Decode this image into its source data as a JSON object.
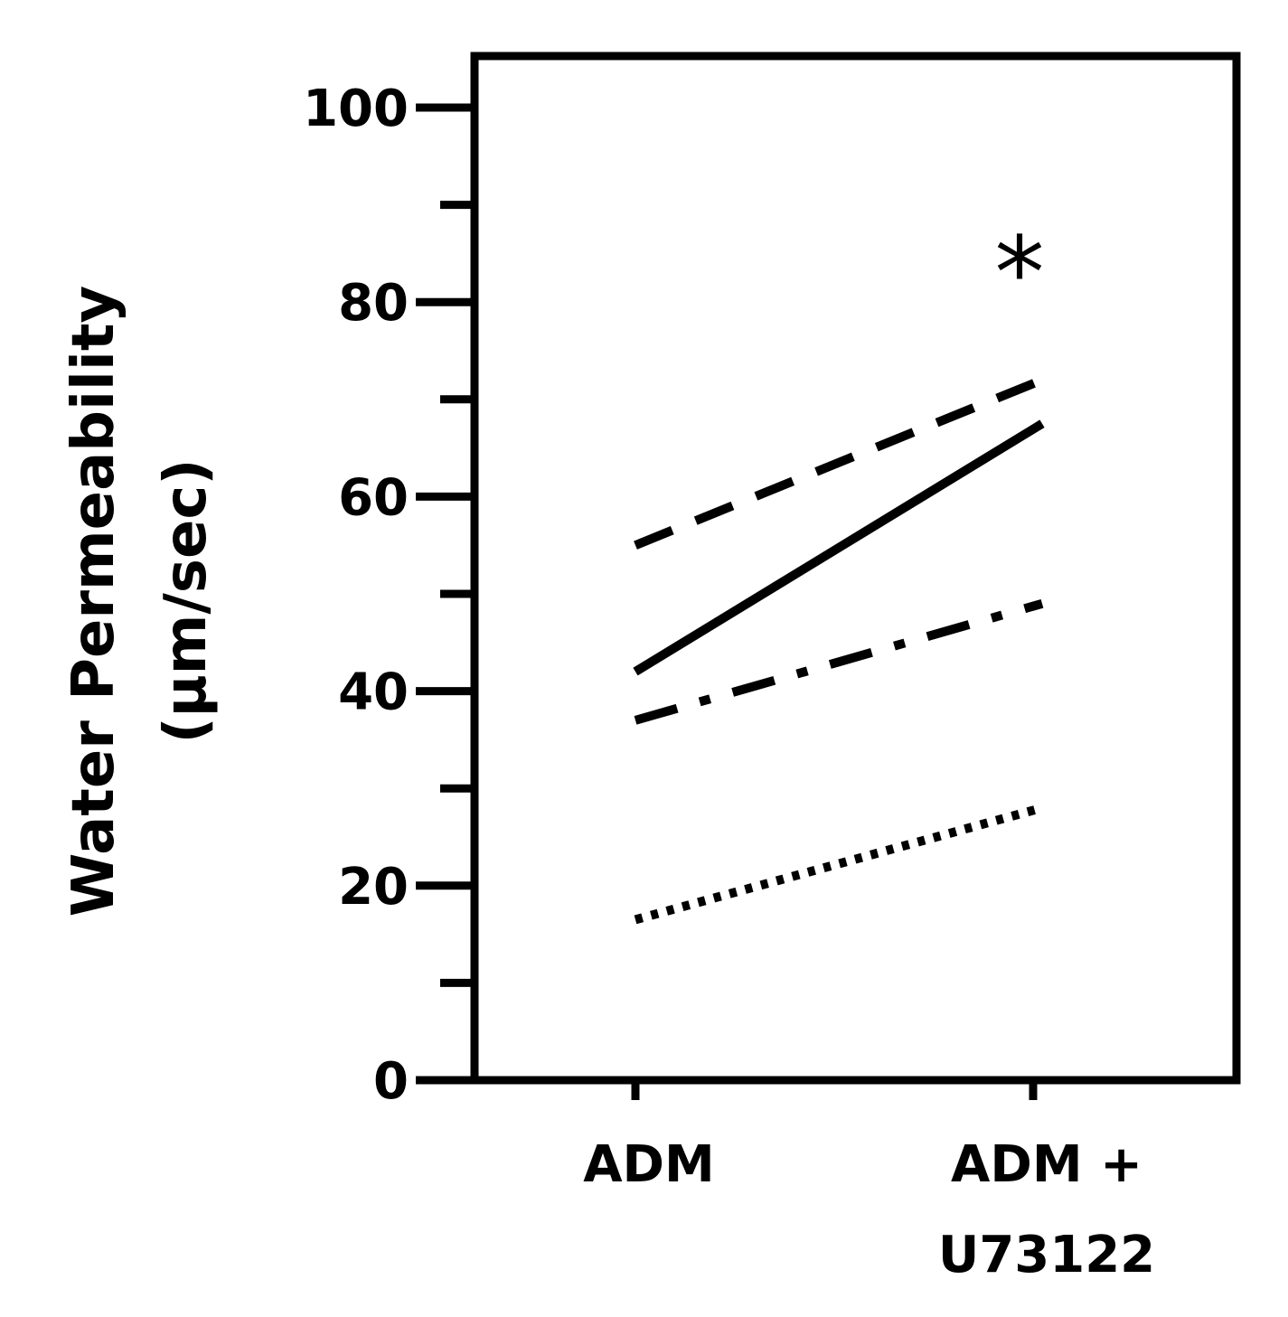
{
  "chart_data": {
    "type": "line",
    "categories": [
      "ADM",
      "ADM + U73122"
    ],
    "category_lines": [
      [
        "ADM"
      ],
      [
        "ADM +",
        "U73122"
      ]
    ],
    "ylabel_lines": [
      "Water Permeability",
      "(µm/sec)"
    ],
    "ylim": [
      0,
      105
    ],
    "yticks": [
      0,
      20,
      40,
      60,
      80,
      100
    ],
    "yticks_minor": [
      10,
      30,
      50,
      70,
      90
    ],
    "grid": false,
    "annotation": "*",
    "series": [
      {
        "style": "dashed",
        "values": [
          55,
          72
        ]
      },
      {
        "style": "solid",
        "values": [
          42,
          67.5
        ]
      },
      {
        "style": "dashdot",
        "values": [
          37,
          49
        ]
      },
      {
        "style": "dotted",
        "values": [
          16.5,
          28
        ]
      }
    ]
  }
}
